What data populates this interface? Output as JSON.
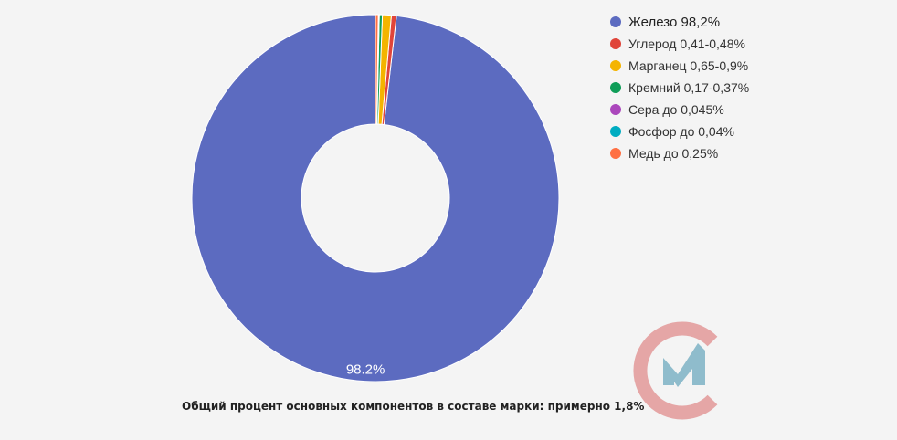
{
  "chart_data": {
    "type": "pie",
    "donut": true,
    "categories": [
      "Железо 98,2%",
      "Углерод 0,41-0,48%",
      "Марганец 0,65-0,9%",
      "Кремний 0,17-0,37%",
      "Сера до 0,045%",
      "Фосфор до 0,04%",
      "Медь до 0,25%"
    ],
    "values": [
      98.2,
      0.45,
      0.78,
      0.27,
      0.045,
      0.04,
      0.25
    ],
    "colors": [
      "#5c6bc0",
      "#e0453a",
      "#f4b400",
      "#0f9d58",
      "#ab47bc",
      "#00acc1",
      "#ff7043"
    ],
    "data_labels": [
      "98.2%",
      "",
      "",
      "",
      "",
      "",
      ""
    ],
    "legend_position": "top-right",
    "title": "",
    "xlabel": "",
    "ylabel": ""
  },
  "footnote": "Общий процент основных компонентов в составе марки: примерно 1,8%",
  "logo": {
    "icon": "logo-cm-icon",
    "ring_color": "#e5a6a6",
    "mark_color": "#8fbccc"
  }
}
